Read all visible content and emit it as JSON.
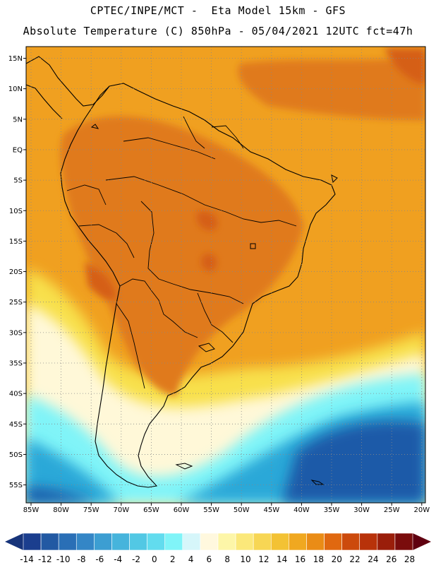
{
  "header": {
    "line1": "CPTEC/INPE/MCT -  Eta Model 15km - GFS",
    "line2": "Absolute Temperature (C) 850hPa - 05/04/2021 12UTC fct=47h"
  },
  "map": {
    "lat_labels": [
      "15N",
      "10N",
      "5N",
      "EQ",
      "5S",
      "10S",
      "15S",
      "20S",
      "25S",
      "30S",
      "35S",
      "40S",
      "45S",
      "50S",
      "55S"
    ],
    "lon_labels": [
      "85W",
      "80W",
      "75W",
      "70W",
      "65W",
      "60W",
      "55W",
      "50W",
      "45W",
      "40W",
      "35W",
      "30W",
      "25W",
      "20W"
    ],
    "gridlines": "dotted",
    "colors": {
      "warm": "#f0a020",
      "hot": "#e07a1e",
      "hotter": "#d55f18",
      "mild": "#f8e04c",
      "pale": "#fff8d8",
      "cool": "#80f4f8",
      "cold": "#2aa8d8",
      "coldest": "#1e5aa8",
      "coastline": "#000000"
    }
  },
  "colorbar": {
    "labels": [
      "-14",
      "-12",
      "-10",
      "-8",
      "-6",
      "-4",
      "-2",
      "0",
      "2",
      "4",
      "6",
      "8",
      "10",
      "12",
      "14",
      "16",
      "18",
      "20",
      "22",
      "24",
      "26",
      "28"
    ],
    "colors": [
      "#1b3e8e",
      "#2259a3",
      "#2a6fb6",
      "#3486c6",
      "#3c9ed2",
      "#46b4dc",
      "#52c8e4",
      "#62dcee",
      "#80f4f8",
      "#d6f6fa",
      "#fff8de",
      "#fdf6a8",
      "#fbe87a",
      "#f7d654",
      "#f3c234",
      "#f0a820",
      "#ea8c16",
      "#e06810",
      "#cc4a0c",
      "#b8320a",
      "#9a1e0a",
      "#7a0c0c"
    ],
    "low_arrow": "#17347a",
    "high_arrow": "#600010"
  }
}
